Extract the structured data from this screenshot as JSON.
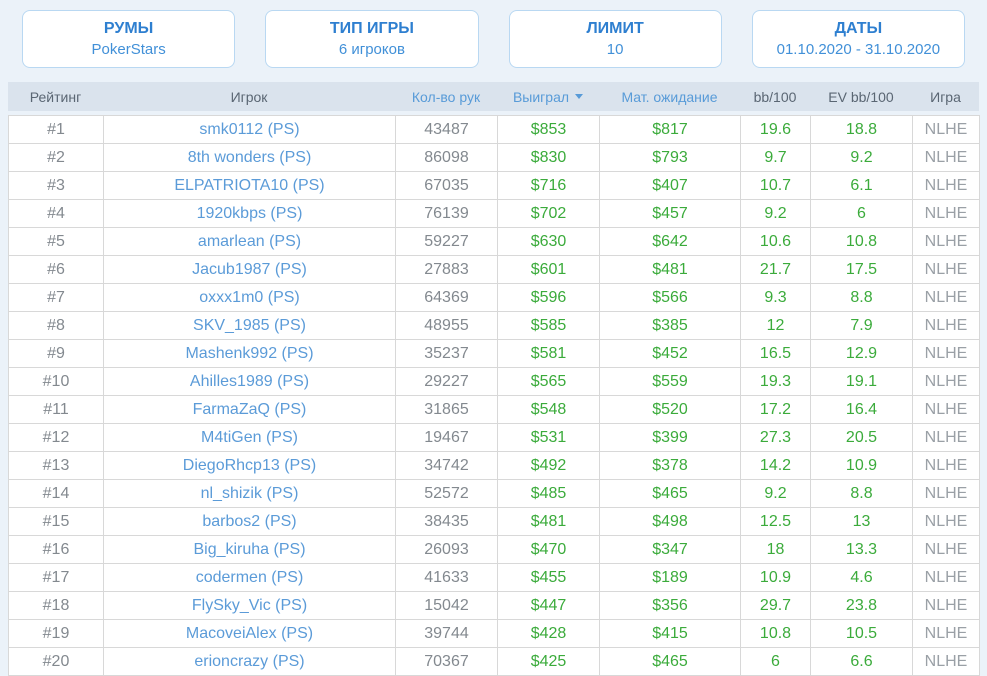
{
  "filters": [
    {
      "label": "РУМЫ",
      "value": "PokerStars"
    },
    {
      "label": "ТИП ИГРЫ",
      "value": "6 игроков"
    },
    {
      "label": "ЛИМИТ",
      "value": "10"
    },
    {
      "label": "ДАТЫ",
      "value": "01.10.2020 - 31.10.2020"
    }
  ],
  "table": {
    "columns": [
      {
        "label": "Рейтинг",
        "style": "dark"
      },
      {
        "label": "Игрок",
        "style": "dark"
      },
      {
        "label": "Кол-во рук",
        "style": "blue"
      },
      {
        "label": "Выиграл",
        "style": "blue",
        "sorted": "desc"
      },
      {
        "label": "Мат. ожидание",
        "style": "blue"
      },
      {
        "label": "bb/100",
        "style": "dark"
      },
      {
        "label": "EV bb/100",
        "style": "dark"
      },
      {
        "label": "Игра",
        "style": "dark"
      }
    ],
    "rows": [
      {
        "rank": "#1",
        "player": "smk0112 (PS)",
        "hands": "43487",
        "won": "$853",
        "expectation": "$817",
        "bb100": "19.6",
        "ev_bb100": "18.8",
        "game": "NLHE"
      },
      {
        "rank": "#2",
        "player": "8th wonders (PS)",
        "hands": "86098",
        "won": "$830",
        "expectation": "$793",
        "bb100": "9.7",
        "ev_bb100": "9.2",
        "game": "NLHE"
      },
      {
        "rank": "#3",
        "player": "ELPATRIOTA10 (PS)",
        "hands": "67035",
        "won": "$716",
        "expectation": "$407",
        "bb100": "10.7",
        "ev_bb100": "6.1",
        "game": "NLHE"
      },
      {
        "rank": "#4",
        "player": "1920kbps (PS)",
        "hands": "76139",
        "won": "$702",
        "expectation": "$457",
        "bb100": "9.2",
        "ev_bb100": "6",
        "game": "NLHE"
      },
      {
        "rank": "#5",
        "player": "amarlean (PS)",
        "hands": "59227",
        "won": "$630",
        "expectation": "$642",
        "bb100": "10.6",
        "ev_bb100": "10.8",
        "game": "NLHE"
      },
      {
        "rank": "#6",
        "player": "Jacub1987 (PS)",
        "hands": "27883",
        "won": "$601",
        "expectation": "$481",
        "bb100": "21.7",
        "ev_bb100": "17.5",
        "game": "NLHE"
      },
      {
        "rank": "#7",
        "player": "oxxx1m0 (PS)",
        "hands": "64369",
        "won": "$596",
        "expectation": "$566",
        "bb100": "9.3",
        "ev_bb100": "8.8",
        "game": "NLHE"
      },
      {
        "rank": "#8",
        "player": "SKV_1985 (PS)",
        "hands": "48955",
        "won": "$585",
        "expectation": "$385",
        "bb100": "12",
        "ev_bb100": "7.9",
        "game": "NLHE"
      },
      {
        "rank": "#9",
        "player": "Mashenk992 (PS)",
        "hands": "35237",
        "won": "$581",
        "expectation": "$452",
        "bb100": "16.5",
        "ev_bb100": "12.9",
        "game": "NLHE"
      },
      {
        "rank": "#10",
        "player": "Ahilles1989 (PS)",
        "hands": "29227",
        "won": "$565",
        "expectation": "$559",
        "bb100": "19.3",
        "ev_bb100": "19.1",
        "game": "NLHE"
      },
      {
        "rank": "#11",
        "player": "FarmaZaQ (PS)",
        "hands": "31865",
        "won": "$548",
        "expectation": "$520",
        "bb100": "17.2",
        "ev_bb100": "16.4",
        "game": "NLHE"
      },
      {
        "rank": "#12",
        "player": "M4tiGen (PS)",
        "hands": "19467",
        "won": "$531",
        "expectation": "$399",
        "bb100": "27.3",
        "ev_bb100": "20.5",
        "game": "NLHE"
      },
      {
        "rank": "#13",
        "player": "DiegoRhcp13 (PS)",
        "hands": "34742",
        "won": "$492",
        "expectation": "$378",
        "bb100": "14.2",
        "ev_bb100": "10.9",
        "game": "NLHE"
      },
      {
        "rank": "#14",
        "player": "nl_shizik (PS)",
        "hands": "52572",
        "won": "$485",
        "expectation": "$465",
        "bb100": "9.2",
        "ev_bb100": "8.8",
        "game": "NLHE"
      },
      {
        "rank": "#15",
        "player": "barbos2 (PS)",
        "hands": "38435",
        "won": "$481",
        "expectation": "$498",
        "bb100": "12.5",
        "ev_bb100": "13",
        "game": "NLHE"
      },
      {
        "rank": "#16",
        "player": "Big_kiruha (PS)",
        "hands": "26093",
        "won": "$470",
        "expectation": "$347",
        "bb100": "18",
        "ev_bb100": "13.3",
        "game": "NLHE"
      },
      {
        "rank": "#17",
        "player": "codermen (PS)",
        "hands": "41633",
        "won": "$455",
        "expectation": "$189",
        "bb100": "10.9",
        "ev_bb100": "4.6",
        "game": "NLHE"
      },
      {
        "rank": "#18",
        "player": "FlySky_Vic (PS)",
        "hands": "15042",
        "won": "$447",
        "expectation": "$356",
        "bb100": "29.7",
        "ev_bb100": "23.8",
        "game": "NLHE"
      },
      {
        "rank": "#19",
        "player": "MacoveiAlex (PS)",
        "hands": "39744",
        "won": "$428",
        "expectation": "$415",
        "bb100": "10.8",
        "ev_bb100": "10.5",
        "game": "NLHE"
      },
      {
        "rank": "#20",
        "player": "erioncrazy (PS)",
        "hands": "70367",
        "won": "$425",
        "expectation": "$465",
        "bb100": "6",
        "ev_bb100": "6.6",
        "game": "NLHE"
      }
    ]
  },
  "colors": {
    "page_background": "#ebf2f9",
    "filter_border": "#b9d8f2",
    "accent_blue": "#2e7fd0",
    "link_blue": "#5b9bd8",
    "header_background": "#dae3ed",
    "positive_green": "#3bab3b",
    "muted_gray": "#83898f"
  }
}
